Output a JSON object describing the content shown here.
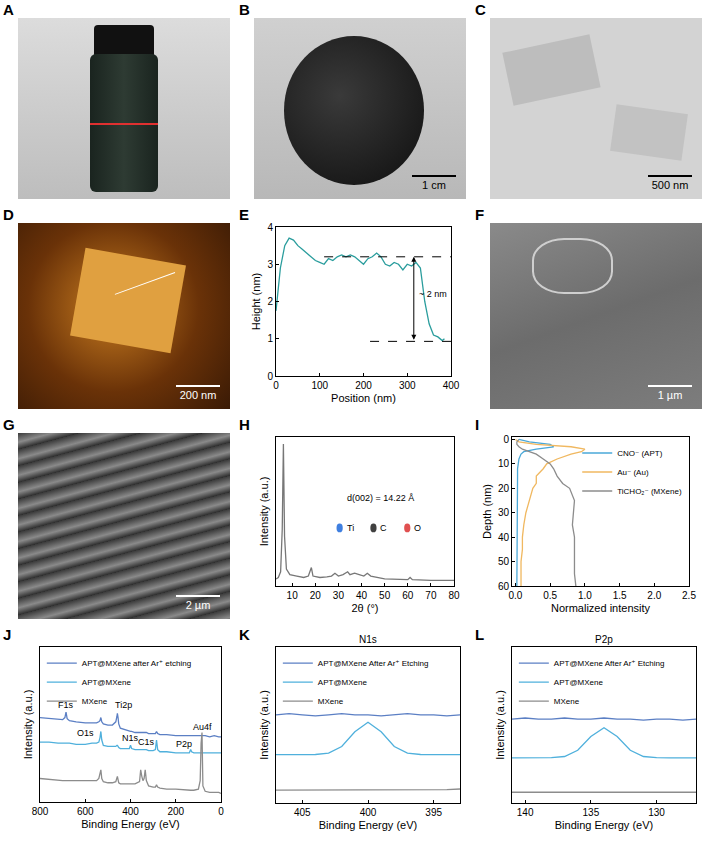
{
  "images": [
    {
      "panel": "A"
    },
    {
      "panel": "B",
      "scale_bar": "1 cm",
      "color": "#000000"
    },
    {
      "panel": "C",
      "scale_bar": "500 nm",
      "color": "#000000"
    },
    {
      "panel": "D",
      "scale_bar": "200 nm",
      "color": "#ffffff"
    },
    {
      "panel": "F",
      "scale_bar": "1 µm",
      "color": "#ffffff"
    },
    {
      "panel": "G",
      "scale_bar": "2 µm",
      "color": "#ffffff"
    }
  ],
  "chart_data": [
    {
      "panel": "E",
      "type": "line",
      "x_label": "Position (nm)",
      "y_label": "Height (nm)",
      "x": [
        0,
        5,
        10,
        20,
        30,
        40,
        50,
        60,
        70,
        80,
        90,
        100,
        110,
        120,
        130,
        140,
        150,
        160,
        170,
        180,
        190,
        200,
        210,
        220,
        230,
        240,
        250,
        260,
        270,
        280,
        290,
        300,
        310,
        320,
        330,
        340,
        350,
        360,
        370,
        380,
        385
      ],
      "values": [
        1.75,
        2.3,
        2.9,
        3.5,
        3.7,
        3.65,
        3.5,
        3.4,
        3.3,
        3.2,
        3.1,
        3.05,
        3.0,
        3.15,
        3.1,
        3.2,
        3.25,
        3.2,
        3.25,
        3.2,
        3.1,
        3.0,
        3.15,
        3.2,
        3.3,
        3.2,
        3.0,
        2.95,
        3.05,
        3.0,
        2.85,
        3.0,
        2.95,
        3.05,
        2.9,
        2.0,
        1.4,
        1.1,
        1.05,
        0.95,
        1.0
      ],
      "color": "#2a9d9d",
      "xlim": [
        0,
        400
      ],
      "xticks": [
        0,
        100,
        200,
        300,
        400
      ],
      "ylim": [
        0,
        4
      ],
      "yticks": [
        0,
        1,
        2,
        3,
        4
      ],
      "reference_lines": [
        {
          "y": 3.2,
          "x0": 110,
          "x1": 400
        },
        {
          "y": 0.93,
          "x0": 215,
          "x1": 400
        }
      ],
      "measure_arrow": {
        "x": 315,
        "y0": 0.93,
        "y1": 3.2
      },
      "annotations": [
        {
          "text": "~ 2 nm",
          "x": 322,
          "y": 2.2
        }
      ],
      "grid": false
    },
    {
      "panel": "H",
      "type": "line",
      "x_label": "2θ (°)",
      "y_label": "Intensity (a.u.)",
      "x": [
        3,
        4,
        5,
        5.7,
        6.2,
        6.7,
        7.5,
        9,
        12,
        15,
        17,
        18.3,
        19,
        22,
        25,
        27,
        28.5,
        30,
        32,
        34,
        35,
        37,
        39,
        41,
        42.5,
        44,
        50,
        55,
        60,
        61,
        62,
        70,
        80
      ],
      "values": [
        0.05,
        0.06,
        0.1,
        0.4,
        1.0,
        0.35,
        0.12,
        0.08,
        0.07,
        0.06,
        0.07,
        0.13,
        0.07,
        0.06,
        0.065,
        0.07,
        0.09,
        0.07,
        0.08,
        0.1,
        0.08,
        0.09,
        0.08,
        0.07,
        0.09,
        0.07,
        0.05,
        0.05,
        0.045,
        0.06,
        0.045,
        0.04,
        0.04
      ],
      "color": "#777777",
      "xlim": [
        3,
        80
      ],
      "xticks": [
        10,
        20,
        30,
        40,
        50,
        60,
        70,
        80
      ],
      "ylim": [
        0,
        1.05
      ],
      "tick_labels": "x",
      "annotations": [
        {
          "text": "d(002) = 14.22 Å",
          "x": 48,
          "y": 0.62
        }
      ],
      "element_legend": [
        {
          "label": "Ti",
          "color": "#3f7fe0"
        },
        {
          "label": "C",
          "color": "#404040"
        },
        {
          "label": "O",
          "color": "#e05050"
        }
      ],
      "grid": false
    },
    {
      "panel": "I",
      "type": "line",
      "x_label": "Normalized intensity",
      "y_label": "Depth (nm)",
      "y": [
        0,
        1,
        2,
        3,
        4,
        5,
        6,
        8,
        10,
        12,
        15,
        18,
        20,
        25,
        30,
        35,
        40,
        45,
        50,
        55,
        60
      ],
      "series": [
        {
          "name": "CNO⁻ (APT)",
          "color": "#4aa8d8",
          "values": [
            0.05,
            0.2,
            0.5,
            0.55,
            0.3,
            0.12,
            0.08,
            0.05,
            0.04,
            0.03,
            0.03,
            0.03,
            0.02,
            0.02,
            0.02,
            0.02,
            0.02,
            0.02,
            0.02,
            0.02,
            0.02
          ]
        },
        {
          "name": "Au⁻ (Au)",
          "color": "#f0b860",
          "values": [
            0.0,
            0.05,
            0.3,
            0.8,
            1.0,
            0.95,
            0.8,
            0.6,
            0.45,
            0.4,
            0.3,
            0.3,
            0.25,
            0.2,
            0.15,
            0.12,
            0.1,
            0.1,
            0.08,
            0.08,
            0.08
          ]
        },
        {
          "name": "TiCHO₂⁻ (MXene)",
          "color": "#8c8c8c",
          "values": [
            0.05,
            0.02,
            0.02,
            0.05,
            0.1,
            0.2,
            0.3,
            0.4,
            0.5,
            0.55,
            0.6,
            0.68,
            0.78,
            0.85,
            0.83,
            0.82,
            0.85,
            0.85,
            0.85,
            0.85,
            0.87
          ]
        }
      ],
      "xlim": [
        -0.05,
        2.5
      ],
      "xticks": [
        {
          "value": 0,
          "label": "0.0"
        },
        {
          "value": 0.5,
          "label": "0.5"
        },
        {
          "value": 1,
          "label": "1.0"
        },
        {
          "value": 1.5,
          "label": "1.5"
        },
        {
          "value": 2,
          "label": "2.0"
        },
        {
          "value": 2.5,
          "label": "2.5"
        }
      ],
      "ylim": [
        60,
        -1
      ],
      "yticks": [
        0,
        10,
        20,
        30,
        40,
        50,
        60
      ],
      "legend": "upper right",
      "grid": false
    },
    {
      "panel": "J",
      "type": "line",
      "x_label": "Binding Energy (eV)",
      "y_label": "Intensity (a.u.)",
      "x": [
        800,
        760,
        720,
        700,
        690,
        685,
        680,
        670,
        640,
        600,
        570,
        550,
        540,
        535,
        531,
        527,
        520,
        500,
        480,
        465,
        460,
        458,
        455,
        452,
        445,
        420,
        405,
        400,
        395,
        380,
        360,
        355,
        350,
        345,
        340,
        335,
        330,
        320,
        300,
        290,
        285,
        280,
        270,
        240,
        200,
        160,
        140,
        134,
        130,
        120,
        100,
        92,
        88,
        84,
        80,
        70,
        50,
        30,
        10,
        0
      ],
      "series": [
        {
          "name": "APT@MXene after Ar⁺ etching",
          "color": "#5b7fc4",
          "values": [
            0.79,
            0.78,
            0.77,
            0.77,
            0.79,
            0.84,
            0.78,
            0.76,
            0.75,
            0.74,
            0.74,
            0.74,
            0.75,
            0.76,
            0.79,
            0.75,
            0.73,
            0.72,
            0.72,
            0.75,
            0.8,
            0.83,
            0.79,
            0.73,
            0.69,
            0.67,
            0.66,
            0.66,
            0.66,
            0.65,
            0.65,
            0.65,
            0.65,
            0.65,
            0.65,
            0.65,
            0.65,
            0.64,
            0.64,
            0.64,
            0.66,
            0.64,
            0.63,
            0.63,
            0.62,
            0.62,
            0.62,
            0.62,
            0.62,
            0.62,
            0.62,
            0.62,
            0.62,
            0.62,
            0.62,
            0.62,
            0.61,
            0.62,
            0.61,
            0.61
          ]
        },
        {
          "name": "APT@MXene",
          "color": "#4fb0dc",
          "values": [
            0.56,
            0.56,
            0.55,
            0.55,
            0.55,
            0.55,
            0.55,
            0.55,
            0.54,
            0.54,
            0.55,
            0.55,
            0.56,
            0.6,
            0.66,
            0.58,
            0.53,
            0.52,
            0.52,
            0.52,
            0.53,
            0.53,
            0.52,
            0.51,
            0.5,
            0.5,
            0.5,
            0.53,
            0.5,
            0.49,
            0.49,
            0.49,
            0.49,
            0.49,
            0.49,
            0.49,
            0.49,
            0.48,
            0.48,
            0.49,
            0.58,
            0.49,
            0.47,
            0.47,
            0.46,
            0.46,
            0.46,
            0.49,
            0.47,
            0.46,
            0.46,
            0.46,
            0.46,
            0.46,
            0.46,
            0.46,
            0.46,
            0.46,
            0.46,
            0.46
          ]
        },
        {
          "name": "MXene",
          "color": "#8c8c8c",
          "values": [
            0.22,
            0.21,
            0.2,
            0.2,
            0.2,
            0.2,
            0.2,
            0.2,
            0.2,
            0.2,
            0.2,
            0.2,
            0.22,
            0.26,
            0.3,
            0.22,
            0.19,
            0.18,
            0.18,
            0.19,
            0.22,
            0.24,
            0.21,
            0.18,
            0.17,
            0.17,
            0.17,
            0.17,
            0.17,
            0.17,
            0.19,
            0.3,
            0.24,
            0.2,
            0.22,
            0.3,
            0.2,
            0.15,
            0.14,
            0.14,
            0.16,
            0.14,
            0.13,
            0.12,
            0.12,
            0.11,
            0.11,
            0.11,
            0.11,
            0.11,
            0.12,
            0.2,
            0.55,
            0.65,
            0.15,
            0.1,
            0.09,
            0.09,
            0.09,
            0.08
          ]
        }
      ],
      "xlim": [
        800,
        0
      ],
      "xticks": [
        800,
        600,
        400,
        200,
        0
      ],
      "ylim": [
        0,
        1.45
      ],
      "tick_labels": "x",
      "annotations": [
        {
          "text": "F1s",
          "x": 685,
          "y": 0.91
        },
        {
          "text": "Ti2p",
          "x": 430,
          "y": 0.91
        },
        {
          "text": "O1s",
          "x": 600,
          "y": 0.645
        },
        {
          "text": "N1s",
          "x": 400,
          "y": 0.595
        },
        {
          "text": "C1s",
          "x": 330,
          "y": 0.565
        },
        {
          "text": "P2p",
          "x": 165,
          "y": 0.545
        },
        {
          "text": "Au4f",
          "x": 84,
          "y": 0.7
        }
      ],
      "legend": "upper left",
      "grid": false
    },
    {
      "panel": "K",
      "type": "line",
      "x_label": "Binding Energy (eV)",
      "y_label": "Intensity (a.u.)",
      "title": "N1s",
      "x": [
        407,
        406,
        405,
        404,
        403,
        402,
        401,
        400,
        399,
        398,
        397,
        396,
        395,
        394,
        393
      ],
      "series": [
        {
          "name": "APT@MXene After Ar⁺ Etching",
          "color": "#5b7fc4",
          "values": [
            0.82,
            0.83,
            0.82,
            0.81,
            0.82,
            0.83,
            0.82,
            0.82,
            0.81,
            0.82,
            0.83,
            0.82,
            0.82,
            0.81,
            0.82
          ]
        },
        {
          "name": "APT@MXene",
          "color": "#4fb0dc",
          "values": [
            0.45,
            0.45,
            0.45,
            0.451,
            0.463,
            0.525,
            0.662,
            0.75,
            0.662,
            0.525,
            0.463,
            0.451,
            0.45,
            0.45,
            0.45
          ]
        },
        {
          "name": "MXene",
          "color": "#8c8c8c",
          "values": [
            0.12,
            0.12,
            0.12,
            0.12,
            0.12,
            0.12,
            0.12,
            0.12,
            0.12,
            0.12,
            0.12,
            0.12,
            0.12,
            0.125,
            0.13
          ]
        }
      ],
      "xlim": [
        407,
        393
      ],
      "xticks": [
        405,
        400,
        395
      ],
      "ylim": [
        0,
        1.45
      ],
      "tick_labels": "x",
      "legend": "upper left",
      "grid": false
    },
    {
      "panel": "L",
      "type": "line",
      "x_label": "Binding Energy (eV)",
      "y_label": "Intensity (a.u.)",
      "title": "P2p",
      "x": [
        141,
        140,
        139,
        138,
        137,
        136,
        135,
        134,
        133,
        132,
        131,
        130,
        129,
        128,
        127
      ],
      "series": [
        {
          "name": "APT@MXene After Ar⁺ Etching",
          "color": "#5b7fc4",
          "values": [
            0.78,
            0.79,
            0.78,
            0.78,
            0.79,
            0.78,
            0.78,
            0.79,
            0.78,
            0.78,
            0.77,
            0.78,
            0.78,
            0.77,
            0.78
          ]
        },
        {
          "name": "APT@MXene",
          "color": "#4fb0dc",
          "values": [
            0.42,
            0.42,
            0.42,
            0.421,
            0.432,
            0.49,
            0.618,
            0.7,
            0.618,
            0.49,
            0.432,
            0.421,
            0.42,
            0.42,
            0.42
          ]
        },
        {
          "name": "MXene",
          "color": "#8c8c8c",
          "values": [
            0.1,
            0.1,
            0.1,
            0.1,
            0.1,
            0.1,
            0.1,
            0.1,
            0.1,
            0.1,
            0.1,
            0.1,
            0.1,
            0.1,
            0.1
          ]
        }
      ],
      "xlim": [
        141,
        127
      ],
      "xticks": [
        140,
        135,
        130
      ],
      "ylim": [
        0,
        1.45
      ],
      "tick_labels": "x",
      "legend": "upper left",
      "grid": false
    }
  ]
}
